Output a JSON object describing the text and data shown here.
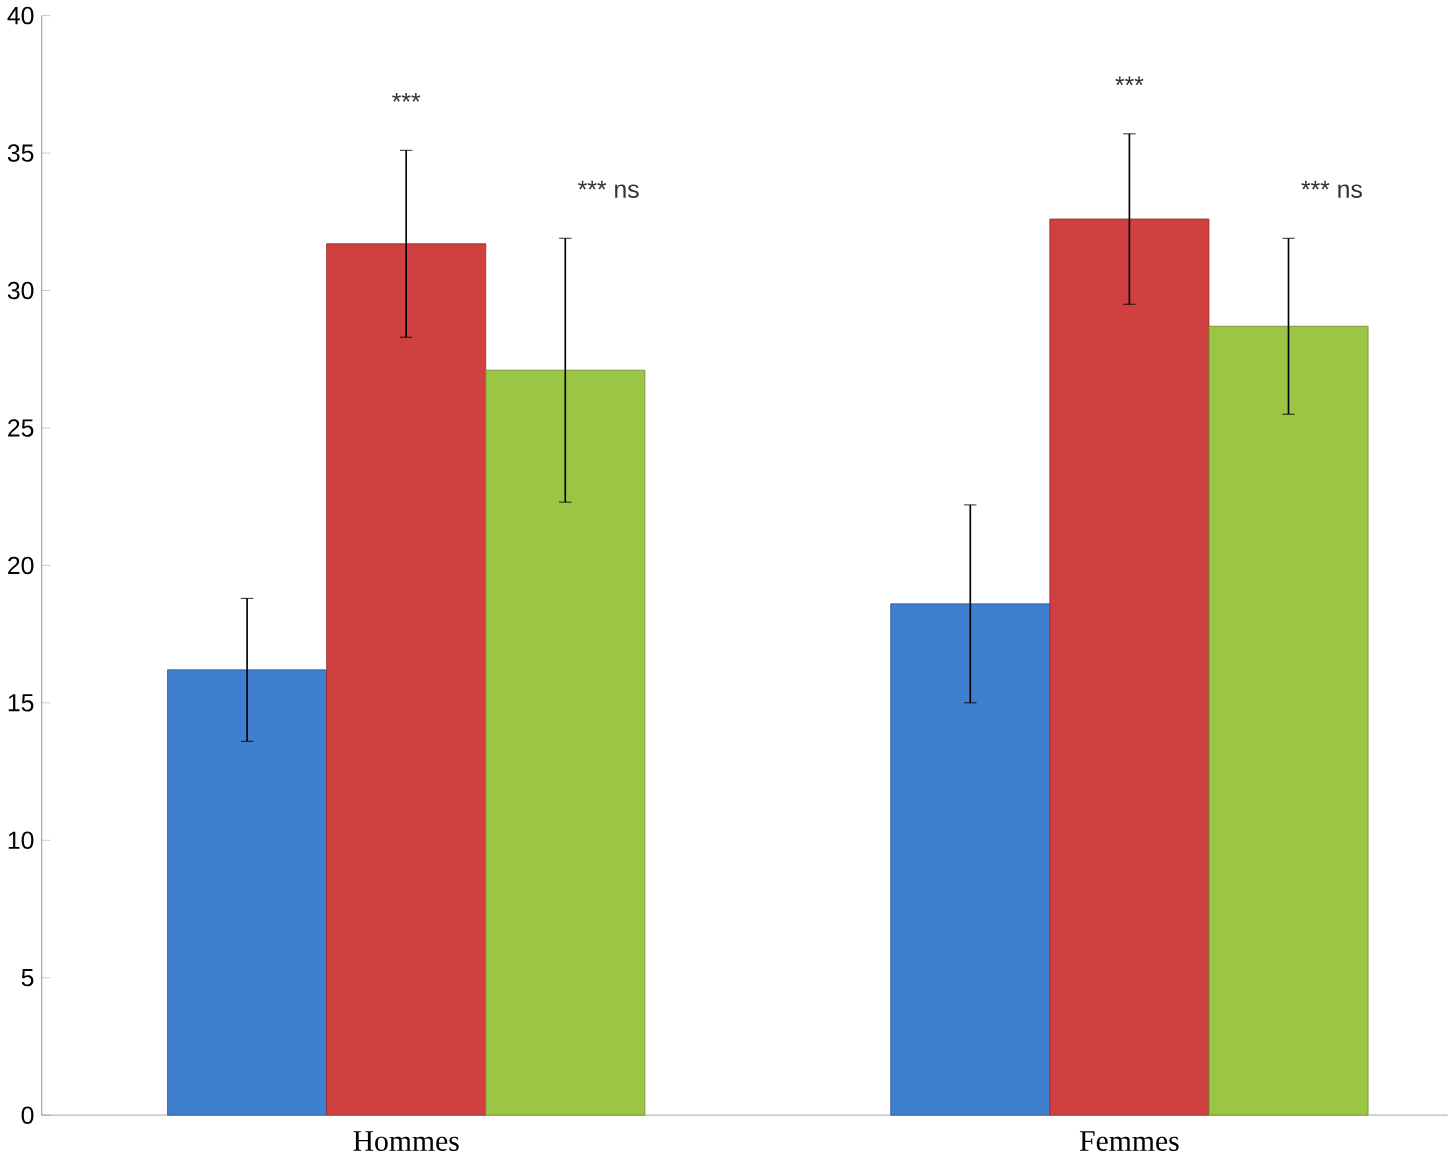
{
  "chart_data": {
    "type": "bar",
    "categories": [
      "Hommes",
      "Femmes"
    ],
    "series": [
      {
        "color": "#3f7fcf",
        "values": [
          16.2,
          18.6
        ],
        "errors": [
          2.6,
          3.6
        ]
      },
      {
        "color": "#d04040",
        "values": [
          31.7,
          32.6
        ],
        "errors": [
          3.4,
          3.1
        ]
      },
      {
        "color": "#9bc544",
        "values": [
          27.1,
          28.7
        ],
        "errors": [
          4.8,
          3.2
        ]
      }
    ],
    "ylim": [
      0,
      40
    ],
    "yticks": [
      0,
      5,
      10,
      15,
      20,
      25,
      30,
      35,
      40
    ],
    "grid": false,
    "annotations": [
      "***",
      "*** ns",
      "***",
      "*** ns"
    ]
  }
}
